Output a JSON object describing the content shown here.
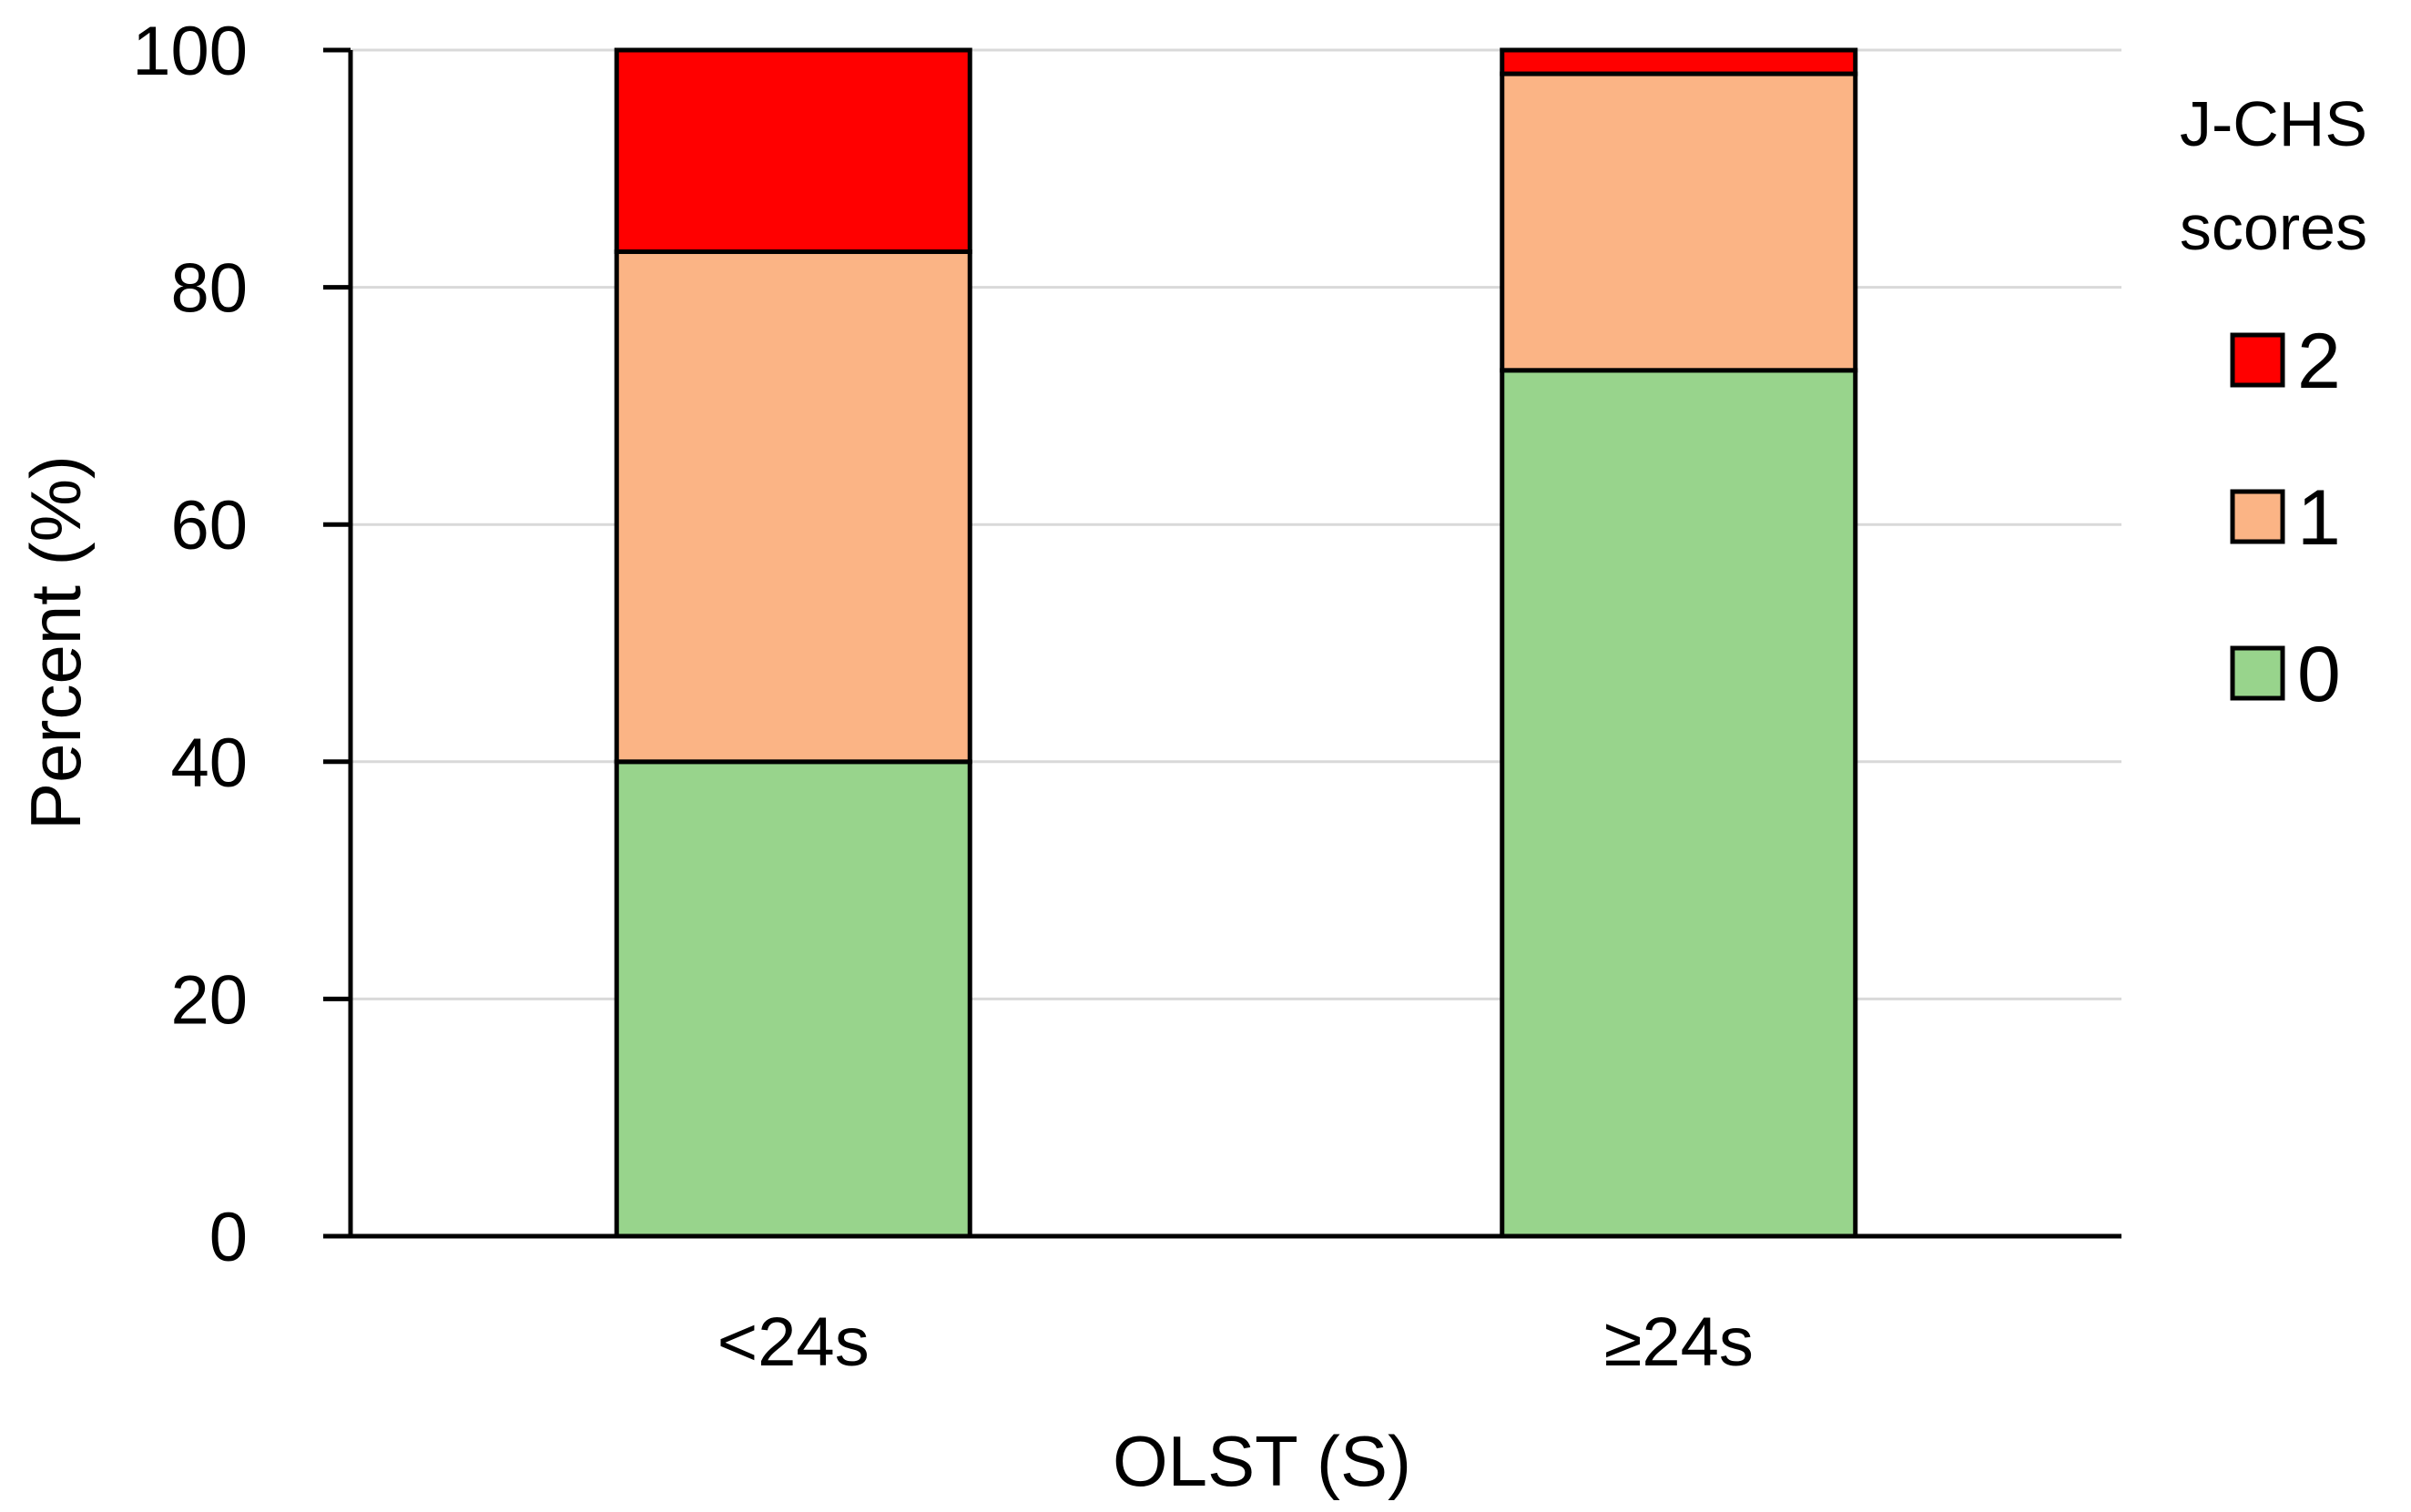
{
  "chart_data": {
    "type": "bar",
    "stacked": true,
    "categories": [
      "<24s",
      "≥24s"
    ],
    "series": [
      {
        "name": "0",
        "values": [
          40,
          73
        ],
        "color": "#98d48c"
      },
      {
        "name": "1",
        "values": [
          43,
          25
        ],
        "color": "#fbb485"
      },
      {
        "name": "2",
        "values": [
          17,
          2
        ],
        "color": "#ff0000"
      }
    ],
    "xlabel": "OLST (S)",
    "ylabel": "Percent (%)",
    "ylim": [
      0,
      100
    ],
    "yticks": [
      "0",
      "20",
      "40",
      "60",
      "80",
      "100"
    ],
    "grid": true,
    "legend": {
      "title_lines": [
        "J-CHS",
        "scores"
      ],
      "order": [
        "2",
        "1",
        "0"
      ],
      "position": "right"
    }
  }
}
